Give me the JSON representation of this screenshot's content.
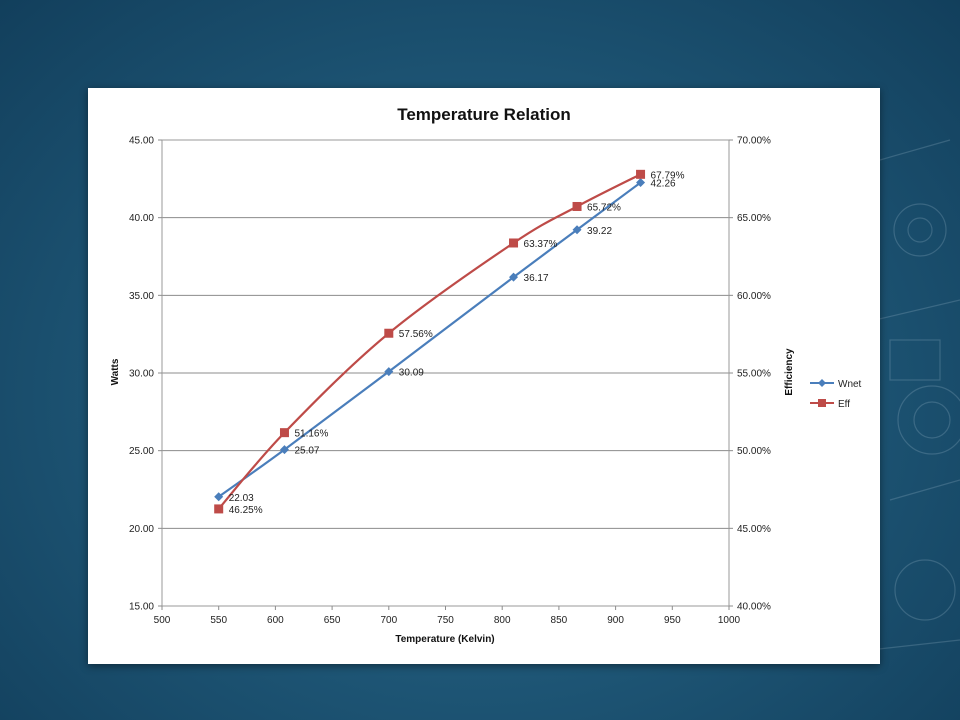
{
  "chart_data": {
    "type": "line",
    "title": "Temperature Relation",
    "xlabel": "Temperature (Kelvin)",
    "ylabel": "Watts",
    "y2label": "Efficiency",
    "xlim": [
      500,
      1000
    ],
    "ylim": [
      15,
      45
    ],
    "y2lim": [
      40,
      70
    ],
    "x_ticks": [
      "500",
      "550",
      "600",
      "650",
      "700",
      "750",
      "800",
      "850",
      "900",
      "950",
      "1000"
    ],
    "y_ticks": [
      "15.00",
      "20.00",
      "25.00",
      "30.00",
      "35.00",
      "40.00",
      "45.00"
    ],
    "y2_ticks": [
      "40.00%",
      "45.00%",
      "50.00%",
      "55.00%",
      "60.00%",
      "65.00%",
      "70.00%"
    ],
    "grid": "horizontal",
    "legend_position": "right",
    "series": [
      {
        "name": "Wnet",
        "axis": "left",
        "color": "#4a7ebb",
        "marker": "diamond",
        "x": [
          550,
          608,
          700,
          810,
          866,
          922
        ],
        "values": [
          22.03,
          25.07,
          30.09,
          36.17,
          39.22,
          42.26
        ],
        "labels": [
          "22.03",
          "25.07",
          "30.09",
          "36.17",
          "39.22",
          "42.26"
        ]
      },
      {
        "name": "Eff",
        "axis": "right",
        "color": "#be4b48",
        "marker": "square",
        "x": [
          550,
          608,
          700,
          810,
          866,
          922
        ],
        "values": [
          46.25,
          51.16,
          57.56,
          63.37,
          65.72,
          67.79
        ],
        "labels": [
          "46.25%",
          "51.16%",
          "57.56%",
          "63.37%",
          "65.72%",
          "67.79%"
        ]
      }
    ]
  }
}
